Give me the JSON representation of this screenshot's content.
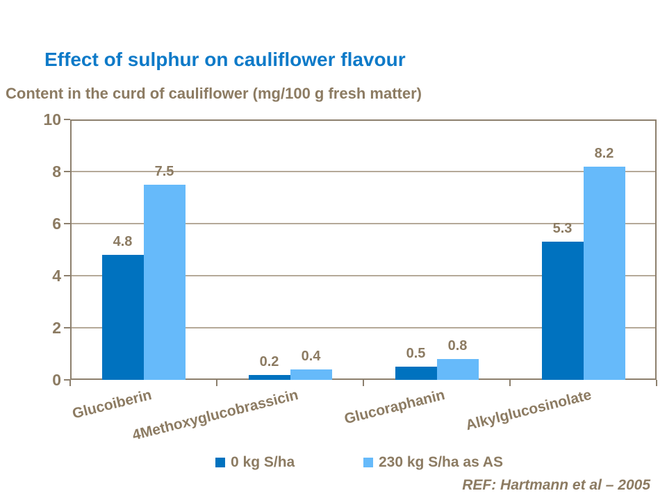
{
  "title": "Effect of sulphur on cauliflower flavour",
  "subtitle": "Content in the curd of cauliflower (mg/100 g fresh matter)",
  "reference": "REF: Hartmann et al – 2005",
  "colors": {
    "title_blue": "#0E7AC8",
    "text_brown": "#8C7B62",
    "axis_line": "#8C7F6D",
    "gridline": "#B5A998",
    "series1_dark_blue": "#0072BF",
    "series2_light_blue": "#66BAFA"
  },
  "chart_data": {
    "type": "bar",
    "title": "Effect of sulphur on cauliflower flavour",
    "subtitle": "Content in the curd of cauliflower (mg/100 g fresh matter)",
    "categories": [
      "Glucoiberin",
      "4Methoxyglucobrassicin",
      "Glucoraphanin",
      "Alkylglucosinolate"
    ],
    "series": [
      {
        "name": "0 kg S/ha",
        "color": "#0072BF",
        "values": [
          4.8,
          0.2,
          0.5,
          5.3
        ]
      },
      {
        "name": "230 kg S/ha as AS",
        "color": "#66BAFA",
        "values": [
          7.5,
          0.4,
          0.8,
          8.2
        ]
      }
    ],
    "xlabel": "",
    "ylabel": "",
    "ylim": [
      0,
      10
    ],
    "yticks": [
      0,
      2,
      4,
      6,
      8,
      10
    ],
    "grid": true,
    "legend_position": "bottom",
    "value_labels": true
  }
}
